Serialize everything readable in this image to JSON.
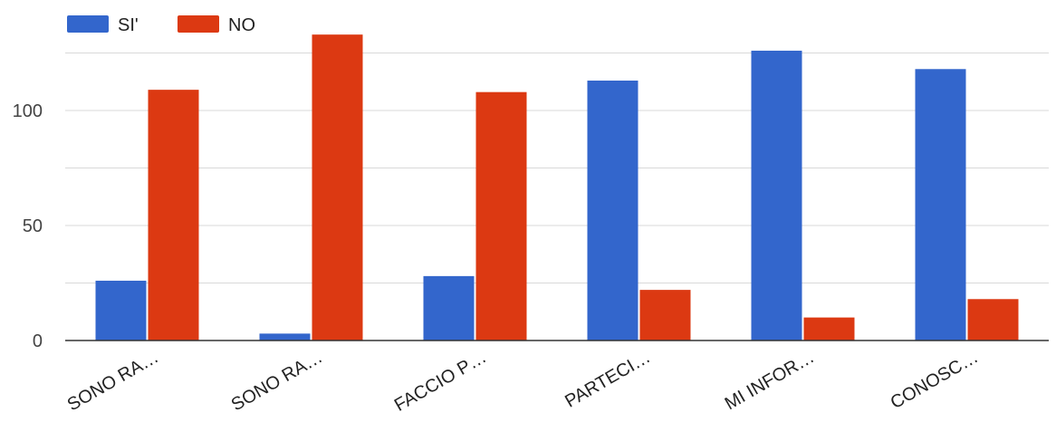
{
  "chart_data": {
    "type": "bar",
    "categories": [
      "SONO RA…",
      "SONO RA…",
      "FACCIO P…",
      "PARTECI…",
      "MI INFOR…",
      "CONOSC…"
    ],
    "series": [
      {
        "name": "SI'",
        "color": "#3366cc",
        "values": [
          26,
          3,
          28,
          113,
          126,
          118
        ]
      },
      {
        "name": "NO",
        "color": "#dc3912",
        "values": [
          109,
          133,
          108,
          22,
          10,
          18
        ]
      }
    ],
    "yticks": [
      0,
      50,
      100
    ],
    "ylim": [
      0,
      140
    ],
    "grid": true,
    "legend": "top-left"
  }
}
